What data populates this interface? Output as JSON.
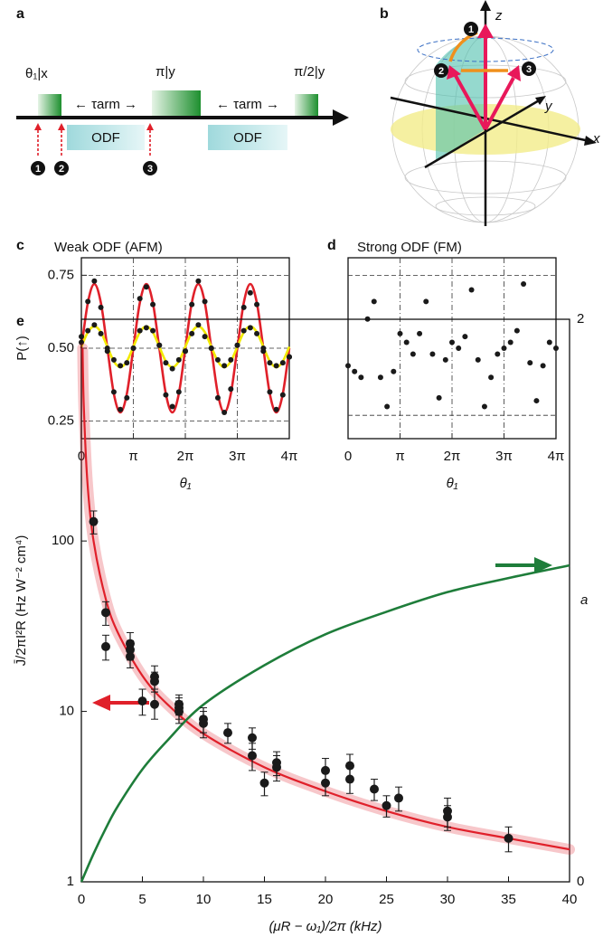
{
  "panel_a": {
    "label": "a",
    "pulses": [
      "θ₁|x",
      "π|y",
      "π/2|y"
    ],
    "tau": [
      "← τarm →",
      "← τarm →"
    ],
    "odf": [
      "ODF",
      "ODF"
    ],
    "steps": [
      "1",
      "2",
      "3"
    ]
  },
  "panel_b": {
    "label": "b",
    "axes": [
      "z",
      "y",
      "x"
    ],
    "steps": [
      "1",
      "2",
      "3"
    ]
  },
  "chart_data": [
    {
      "type": "line",
      "label": "c",
      "title": "Weak ODF (AFM)",
      "x_label": "θ₁",
      "y_label": "P(↑)",
      "x": [
        0,
        0.393,
        0.785,
        1.178,
        1.571,
        1.963,
        2.356,
        2.749,
        3.142,
        3.534,
        3.927,
        4.32,
        4.712,
        5.105,
        5.498,
        5.89,
        6.283,
        6.676,
        7.069,
        7.461,
        7.854,
        8.247,
        8.639,
        9.032,
        9.425,
        9.817,
        10.21,
        10.603,
        10.996,
        11.388,
        11.781,
        12.174,
        12.566
      ],
      "series": [
        {
          "color": "#e0202a",
          "mode": "line",
          "values": [
            0.5,
            0.656,
            0.72,
            0.656,
            0.5,
            0.344,
            0.28,
            0.344,
            0.5,
            0.656,
            0.72,
            0.656,
            0.5,
            0.344,
            0.28,
            0.344,
            0.5,
            0.656,
            0.72,
            0.656,
            0.5,
            0.344,
            0.28,
            0.344,
            0.5,
            0.656,
            0.72,
            0.656,
            0.5,
            0.344,
            0.28,
            0.344,
            0.5
          ]
        },
        {
          "color": "#f2ea00",
          "mode": "line",
          "values": [
            0.505,
            0.555,
            0.575,
            0.555,
            0.505,
            0.455,
            0.435,
            0.455,
            0.505,
            0.555,
            0.575,
            0.555,
            0.505,
            0.455,
            0.435,
            0.455,
            0.505,
            0.555,
            0.575,
            0.555,
            0.505,
            0.455,
            0.435,
            0.455,
            0.505,
            0.555,
            0.575,
            0.555,
            0.505,
            0.455,
            0.435,
            0.455,
            0.505
          ]
        },
        {
          "color": "#1a1a1a",
          "mode": "markers",
          "values": [
            0.52,
            0.66,
            0.73,
            0.64,
            0.49,
            0.35,
            0.29,
            0.33,
            0.5,
            0.67,
            0.71,
            0.65,
            0.51,
            0.34,
            0.3,
            0.35,
            0.49,
            0.65,
            0.73,
            0.66,
            0.5,
            0.33,
            0.28,
            0.36,
            0.51,
            0.64,
            0.69,
            0.65,
            0.49,
            0.35,
            0.29,
            0.34,
            0.47
          ]
        },
        {
          "color": "#1a1a1a",
          "mode": "markers",
          "values": [
            0.54,
            0.56,
            0.58,
            0.55,
            0.5,
            0.46,
            0.44,
            0.45,
            0.5,
            0.56,
            0.57,
            0.56,
            0.51,
            0.45,
            0.43,
            0.46,
            0.49,
            0.55,
            0.58,
            0.54,
            0.5,
            0.46,
            0.44,
            0.46,
            0.51,
            0.56,
            0.57,
            0.55,
            0.5,
            0.45,
            0.44,
            0.45,
            0.47
          ]
        }
      ],
      "xlim": [
        0,
        12.566
      ],
      "xticks": [
        0,
        {
          "value": 3.1416,
          "label": "π"
        },
        {
          "value": 6.2832,
          "label": "2π"
        },
        {
          "value": 9.4248,
          "label": "3π"
        },
        {
          "value": 12.566,
          "label": "4π"
        }
      ],
      "ylim": [
        0.19,
        0.81
      ],
      "yticks": [
        0.25,
        {
          "value": 0.5,
          "label": "0.50"
        },
        0.75
      ],
      "grid": true
    },
    {
      "type": "scatter",
      "label": "d",
      "title": "Strong ODF (FM)",
      "x_label": "θ₁",
      "x": [
        0,
        0.393,
        0.785,
        1.178,
        1.571,
        1.963,
        2.356,
        2.749,
        3.142,
        3.534,
        3.927,
        4.32,
        4.712,
        5.105,
        5.498,
        5.89,
        6.283,
        6.676,
        7.069,
        7.461,
        7.854,
        8.247,
        8.639,
        9.032,
        9.425,
        9.817,
        10.21,
        10.603,
        10.996,
        11.388,
        11.781,
        12.174,
        12.566
      ],
      "series": [
        {
          "color": "#1a1a1a",
          "mode": "markers",
          "values": [
            0.44,
            0.42,
            0.4,
            0.6,
            0.66,
            0.4,
            0.3,
            0.42,
            0.55,
            0.52,
            0.48,
            0.55,
            0.66,
            0.48,
            0.33,
            0.46,
            0.52,
            0.5,
            0.54,
            0.7,
            0.46,
            0.3,
            0.4,
            0.48,
            0.5,
            0.52,
            0.56,
            0.72,
            0.45,
            0.32,
            0.44,
            0.52,
            0.5
          ]
        }
      ],
      "xlim": [
        0,
        12.566
      ],
      "xticks": [
        0,
        {
          "value": 3.1416,
          "label": "π"
        },
        {
          "value": 6.2832,
          "label": "2π"
        },
        {
          "value": 9.4248,
          "label": "3π"
        },
        {
          "value": 12.566,
          "label": "4π"
        }
      ],
      "ylim": [
        0.19,
        0.81
      ],
      "hlines": [
        0.75,
        0.27
      ],
      "grid": true
    },
    {
      "type": "line",
      "label": "e",
      "x_label": "(μR − ω₁)/2π (kHz)",
      "y_label": "J̄/2πI²R (Hz W⁻² cm⁴)",
      "y2_label": "a",
      "yscale": "log",
      "series": [
        {
          "color": "#e0202a",
          "mode": "line",
          "band": true,
          "x": [
            0.1,
            0.2,
            0.5,
            1,
            2,
            3,
            5,
            7,
            10,
            15,
            20,
            25,
            30,
            35,
            40
          ],
          "values": [
            1349,
            617,
            219,
            100,
            45.7,
            28.9,
            16.2,
            11.1,
            7.4,
            4.7,
            3.4,
            2.6,
            2.1,
            1.8,
            1.55
          ]
        },
        {
          "color": "#1e7d3a",
          "mode": "line",
          "axis": "y2",
          "x": [
            0,
            1,
            2,
            3,
            5,
            7,
            10,
            15,
            20,
            25,
            30,
            35,
            40
          ],
          "values": [
            0,
            0.1,
            0.19,
            0.27,
            0.4,
            0.5,
            0.63,
            0.77,
            0.88,
            0.96,
            1.03,
            1.08,
            1.125
          ]
        },
        {
          "color": "#1a1a1a",
          "mode": "markers",
          "x": [
            1,
            2,
            2,
            4,
            4,
            4,
            5,
            6,
            6,
            6,
            8,
            8,
            8,
            10,
            10,
            12,
            14,
            14,
            15,
            16,
            16,
            20,
            20,
            22,
            22,
            24,
            25,
            26,
            30,
            30,
            35
          ],
          "values": [
            130,
            38,
            24,
            25,
            23,
            21,
            11.5,
            16,
            15,
            11,
            11,
            10.5,
            10,
            9,
            8.5,
            7.5,
            7,
            5.5,
            3.8,
            5,
            4.7,
            4.5,
            3.8,
            4.8,
            4.0,
            3.5,
            2.8,
            3.1,
            2.6,
            2.4,
            1.8
          ],
          "errors": [
            20,
            6,
            4,
            4,
            3,
            3,
            2,
            2.5,
            2,
            2,
            1.5,
            1.5,
            1.5,
            1.5,
            1.5,
            1,
            1,
            1,
            0.6,
            0.8,
            0.8,
            0.8,
            0.6,
            0.8,
            0.7,
            0.5,
            0.4,
            0.5,
            0.5,
            0.4,
            0.3
          ]
        }
      ],
      "xlim": [
        0,
        40
      ],
      "xticks": [
        0,
        5,
        10,
        15,
        20,
        25,
        30,
        35,
        40
      ],
      "ylim": [
        1,
        2000
      ],
      "yticks": [
        1,
        10,
        100
      ],
      "y2lim": [
        0,
        2
      ],
      "y2ticks": [
        0,
        2
      ]
    }
  ]
}
